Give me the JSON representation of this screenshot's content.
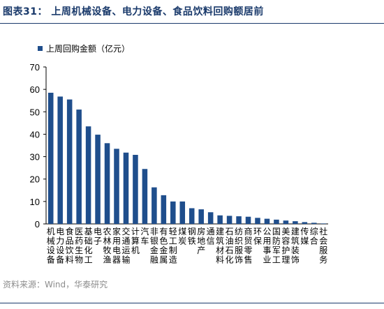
{
  "header": {
    "title": "图表31：  上周机械设备、电力设备、食品饮料回购额居前"
  },
  "footer": {
    "source": "资料来源：Wind，华泰研究"
  },
  "chart_data": {
    "type": "bar",
    "title": "图表31：  上周机械设备、电力设备、食品饮料回购额居前",
    "legend": [
      "上周回购金额（亿元）"
    ],
    "legend_position": "top-left",
    "ylim": [
      0,
      70
    ],
    "yticks": [
      0,
      10,
      20,
      30,
      40,
      50,
      60,
      70
    ],
    "grid": false,
    "bar_color": "#1f4e8c",
    "categories": [
      "机械设备",
      "电力设备",
      "食品饮料",
      "医药生物",
      "基础化工",
      "电子",
      "农林牧渔",
      "家用电器",
      "交通运输",
      "计算机",
      "汽车",
      "非银金融",
      "有色金属",
      "轻工制造",
      "煤炭",
      "钢铁",
      "房地产",
      "通信",
      "建筑材料",
      "石油石化",
      "纺织服饰",
      "商贸零售",
      "环保",
      "公用事业",
      "国防军工",
      "美容护理",
      "建筑装饰",
      "传媒",
      "综合",
      "社会服务"
    ],
    "series": [
      {
        "name": "上周回购金额（亿元）",
        "values": [
          58.5,
          56.8,
          55.5,
          51,
          43.5,
          39.8,
          36,
          33.5,
          31.8,
          30.8,
          24.5,
          16.3,
          12.8,
          10,
          10,
          7,
          6.5,
          5.2,
          3.8,
          3.6,
          3.4,
          3.2,
          2.7,
          2.3,
          1.9,
          1.5,
          1.2,
          0.8,
          0.5,
          0.2
        ]
      }
    ]
  }
}
